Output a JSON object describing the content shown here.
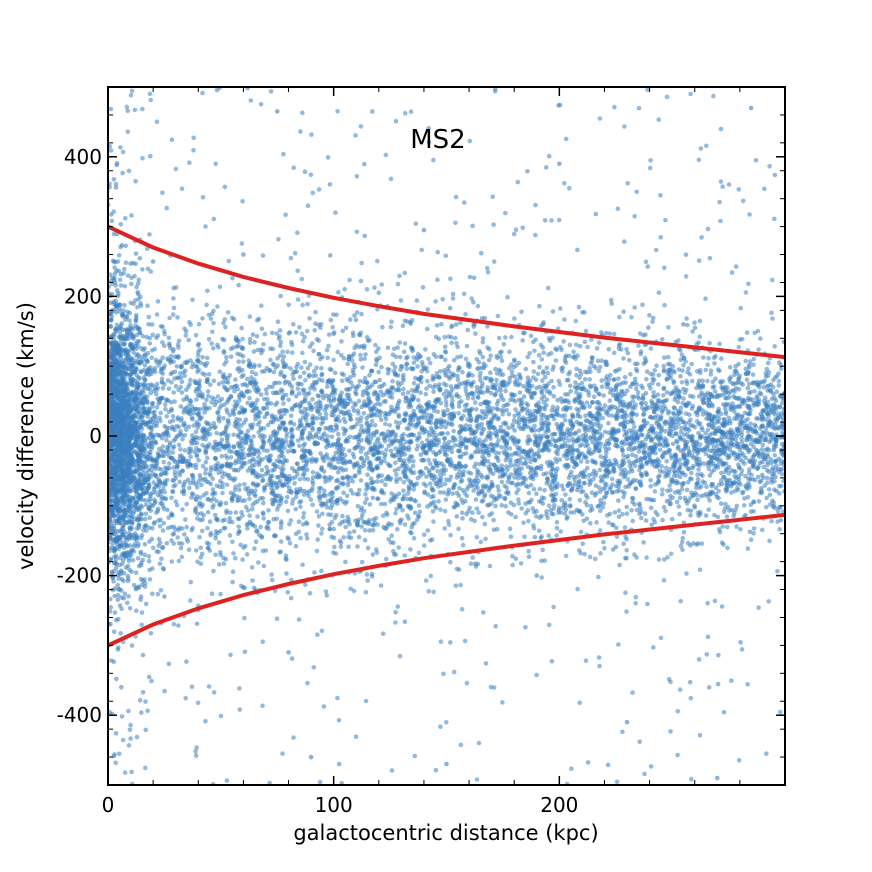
{
  "chart_data": {
    "type": "scatter",
    "title": "",
    "annotation": "MS2",
    "xlabel": "galactocentric distance (kpc)",
    "ylabel": "velocity difference (km/s)",
    "xlim": [
      0,
      300
    ],
    "ylim": [
      -500,
      500
    ],
    "x_ticks": [
      0,
      100,
      200
    ],
    "x_tick_labels": [
      "0",
      "100",
      "200"
    ],
    "y_ticks": [
      -400,
      -200,
      0,
      200,
      400
    ],
    "y_tick_labels": [
      "-400",
      "-200",
      "0",
      "200",
      "400"
    ],
    "grid": false,
    "legend": "none",
    "colors": {
      "points": "#3a7fbf",
      "curves": "#dd2222"
    },
    "series": [
      {
        "type": "scatter",
        "approx_count": 9000,
        "distribution": "velocity spread narrowing from about ±150 km/s near 0 kpc to about ±100 km/s at 300 kpc; densest at x < 20 kpc, with outliers reaching ±500 km/s",
        "sample_points": [
          [
            2,
            20
          ],
          [
            5,
            -60
          ],
          [
            8,
            110
          ],
          [
            12,
            -140
          ],
          [
            20,
            250
          ],
          [
            25,
            -230
          ],
          [
            40,
            30
          ],
          [
            55,
            -90
          ],
          [
            60,
            260
          ],
          [
            75,
            465
          ],
          [
            80,
            -310
          ],
          [
            90,
            -460
          ],
          [
            110,
            60
          ],
          [
            130,
            -120
          ],
          [
            140,
            295
          ],
          [
            150,
            -470
          ],
          [
            170,
            80
          ],
          [
            190,
            -200
          ],
          [
            200,
            390
          ],
          [
            230,
            -410
          ],
          [
            255,
            160
          ],
          [
            270,
            -490
          ],
          [
            285,
            470
          ],
          [
            295,
            -20
          ]
        ]
      },
      {
        "type": "line",
        "x": [
          0,
          20,
          40,
          60,
          80,
          100,
          120,
          140,
          160,
          180,
          200,
          220,
          240,
          260,
          280,
          300
        ],
        "values": [
          300,
          270,
          247,
          228,
          212,
          198,
          186,
          175,
          166,
          157,
          149,
          141,
          134,
          127,
          120,
          113
        ]
      },
      {
        "type": "line",
        "x": [
          0,
          20,
          40,
          60,
          80,
          100,
          120,
          140,
          160,
          180,
          200,
          220,
          240,
          260,
          280,
          300
        ],
        "values": [
          -300,
          -270,
          -247,
          -228,
          -212,
          -198,
          -186,
          -175,
          -166,
          -157,
          -149,
          -141,
          -134,
          -127,
          -120,
          -113
        ]
      }
    ]
  }
}
